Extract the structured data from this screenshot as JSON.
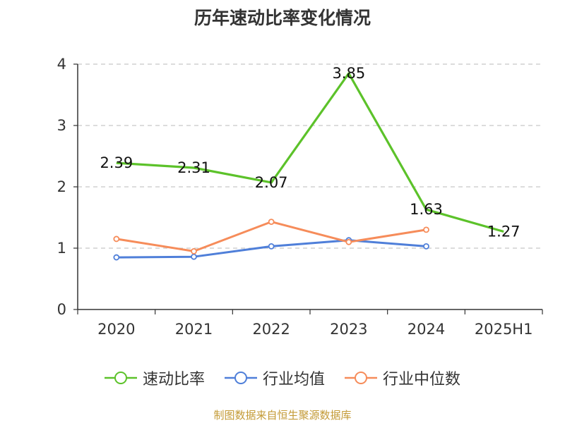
{
  "chart_data": {
    "type": "line",
    "title": "历年速动比率变化情况",
    "categories": [
      "2020",
      "2021",
      "2022",
      "2023",
      "2024",
      "2025H1"
    ],
    "ylim": [
      0,
      4
    ],
    "yticks": [
      "0",
      "1",
      "2",
      "3",
      "4"
    ],
    "grid": true,
    "legend_position": "bottom",
    "series": [
      {
        "name": "速动比率",
        "color": "#5cc22a",
        "values": [
          2.39,
          2.31,
          2.07,
          3.85,
          1.63,
          1.27
        ],
        "labels": [
          "2.39",
          "2.31",
          "2.07",
          "3.85",
          "1.63",
          "1.27"
        ]
      },
      {
        "name": "行业均值",
        "color": "#4f7fd9",
        "values": [
          0.85,
          0.86,
          1.03,
          1.13,
          1.03,
          null
        ]
      },
      {
        "name": "行业中位数",
        "color": "#f68c5a",
        "values": [
          1.15,
          0.95,
          1.43,
          1.1,
          1.3,
          null
        ]
      }
    ]
  },
  "footer": "制图数据来自恒生聚源数据库"
}
